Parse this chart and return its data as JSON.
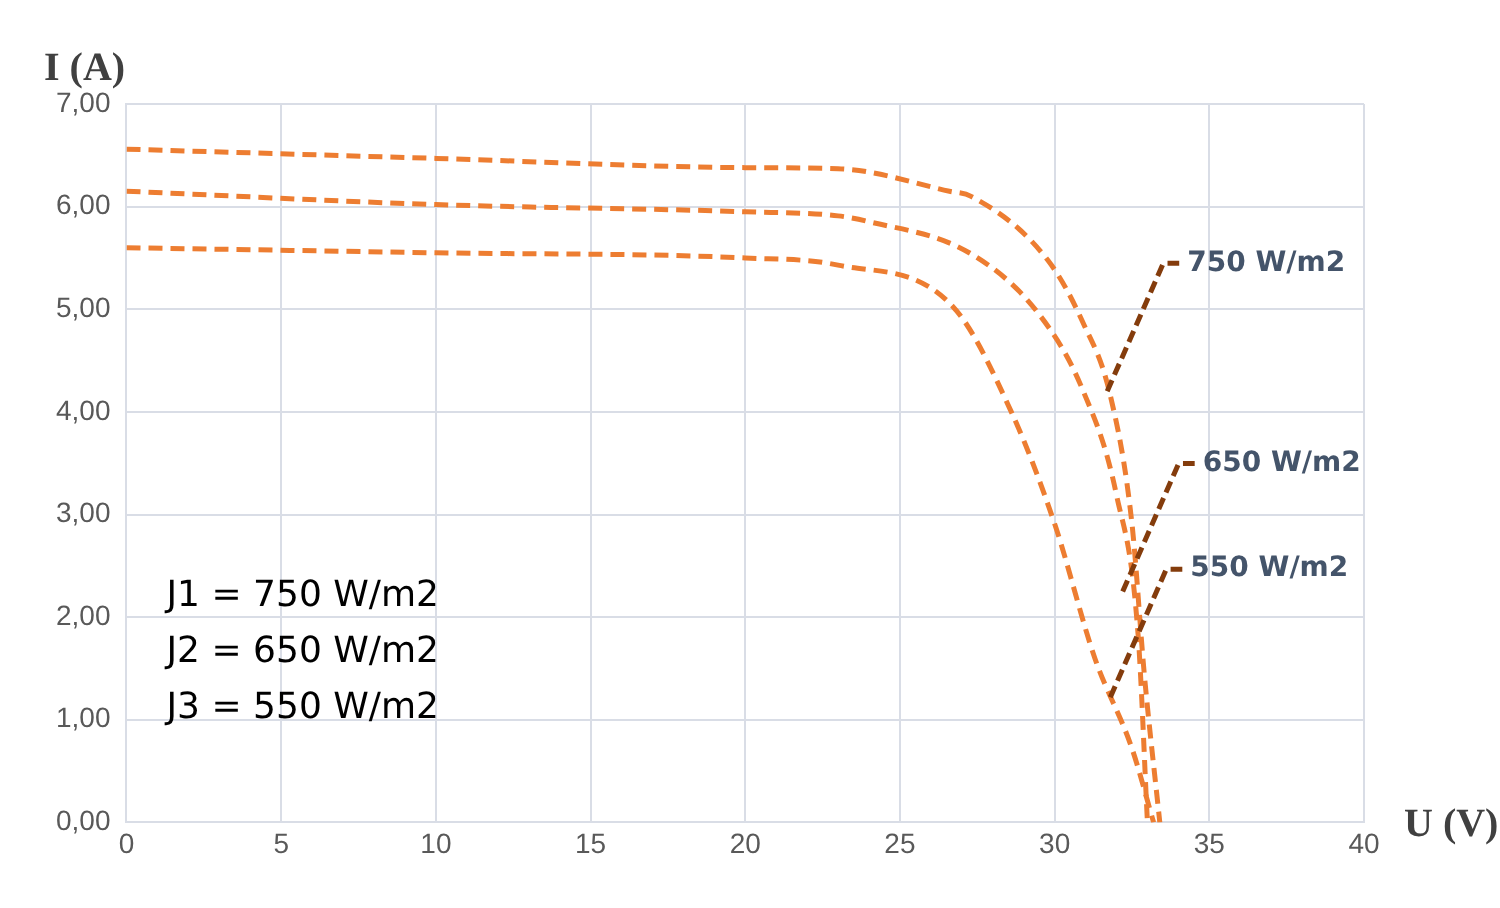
{
  "chart_data": {
    "type": "line",
    "xlabel": "U (V)",
    "ylabel": "I (A)",
    "xlim": [
      0,
      40
    ],
    "xticks": [
      0,
      5,
      10,
      15,
      20,
      25,
      30,
      35,
      40
    ],
    "ylim": [
      0,
      7
    ],
    "yticks": [
      {
        "value": 0,
        "label": "0,00"
      },
      {
        "value": 1,
        "label": "1,00"
      },
      {
        "value": 2,
        "label": "2,00"
      },
      {
        "value": 3,
        "label": "3,00"
      },
      {
        "value": 4,
        "label": "4,00"
      },
      {
        "value": 5,
        "label": "5,00"
      },
      {
        "value": 6,
        "label": "6,00"
      },
      {
        "value": 7,
        "label": "7,00"
      }
    ],
    "grid": true,
    "marker": "none",
    "line_style": "dashed",
    "series": [
      {
        "color": "#ed7d31",
        "x": [
          0,
          10,
          20,
          23,
          26.6,
          27.3,
          29.8,
          30.9,
          31.8,
          32.5,
          32.9,
          33.4
        ],
        "values": [
          6.56,
          6.47,
          6.38,
          6.37,
          6.15,
          6.1,
          5.47,
          4.88,
          4.16,
          2.91,
          1.44,
          0
        ]
      },
      {
        "color": "#ed7d31",
        "x": [
          0,
          10,
          20,
          23,
          23.9,
          27.3,
          29.5,
          30.9,
          32,
          32.7,
          33
        ],
        "values": [
          6.15,
          6.02,
          5.95,
          5.91,
          5.86,
          5.54,
          4.95,
          4.22,
          3.19,
          1.82,
          0
        ]
      },
      {
        "color": "#ed7d31",
        "x": [
          0,
          10,
          20,
          23,
          26.7,
          28.6,
          30,
          31.3,
          32.5,
          33.2
        ],
        "values": [
          5.6,
          5.55,
          5.5,
          5.43,
          5.03,
          4,
          2.91,
          1.6,
          0.72,
          0
        ]
      }
    ],
    "annotations": [
      "J1 = 750 W/m2",
      "J2 = 650 W/m2",
      "J3 = 550 W/m2",
      {
        "text": "750 W/m2",
        "x": 31.7,
        "y": 4.2
      },
      {
        "text": "650 W/m2",
        "x": 32.2,
        "y": 2.25
      },
      {
        "text": "550 W/m2",
        "x": 31.8,
        "y": 1.22
      }
    ]
  }
}
